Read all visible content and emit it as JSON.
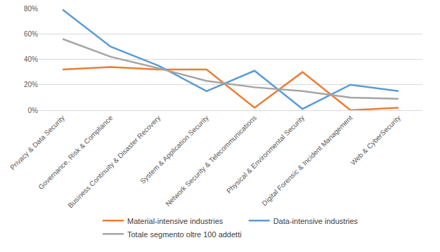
{
  "chart_data": {
    "type": "line",
    "categories": [
      "Privacy & Data Security",
      "Governance, Risk & Compliance",
      "Business Continuity & Disaster Recovery",
      "System & Application Security",
      "Network Security & Telecommunications",
      "Physical & Environmental Security",
      "Digital Forensic & Incident Management",
      "Web & CyberSecurity"
    ],
    "series": [
      {
        "name": "Material-intensive industries",
        "color": "#ED7D31",
        "values": [
          32,
          34,
          32,
          32,
          2,
          30,
          0,
          2
        ]
      },
      {
        "name": "Data-intensive industries",
        "color": "#5B9BD5",
        "values": [
          79,
          50,
          35,
          15,
          31,
          1,
          20,
          15
        ]
      },
      {
        "name": "Totale segmento oltre 100 addetti",
        "color": "#A5A5A5",
        "values": [
          56,
          42,
          33,
          23,
          18,
          15,
          10,
          9
        ]
      }
    ],
    "ylim": [
      0,
      80
    ],
    "yticks": [
      {
        "value": 0,
        "label": "0%"
      },
      {
        "value": 20,
        "label": "20%"
      },
      {
        "value": 40,
        "label": "40%"
      },
      {
        "value": 60,
        "label": "60%"
      },
      {
        "value": 80,
        "label": "80%"
      }
    ],
    "grid": true,
    "legend": "bottom"
  }
}
